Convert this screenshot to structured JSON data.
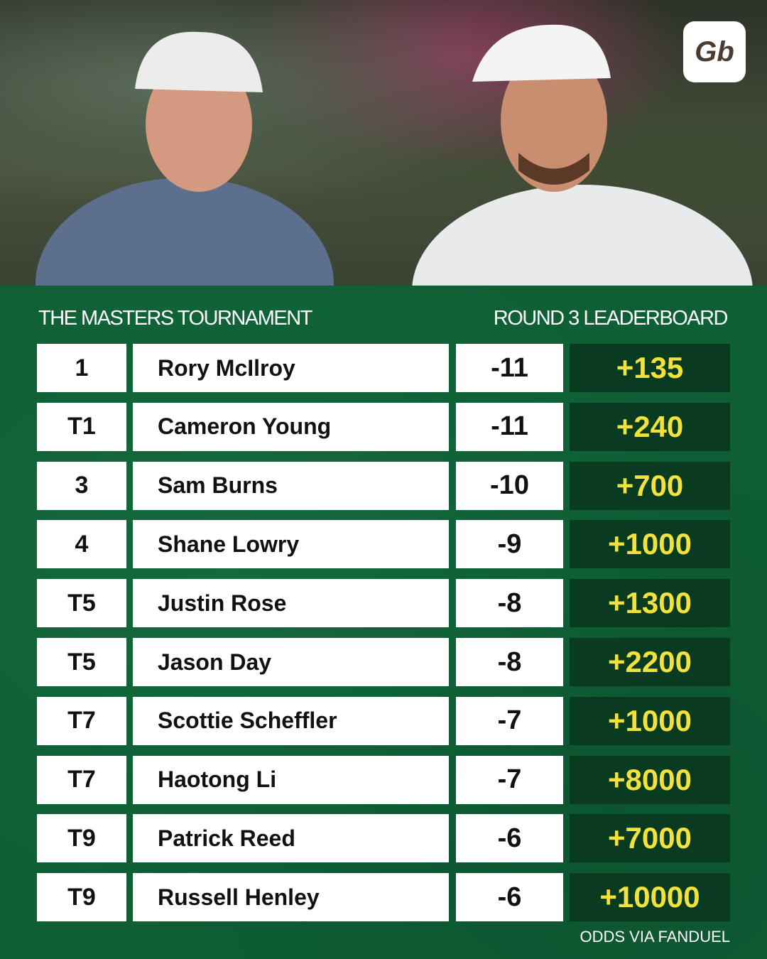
{
  "brand": {
    "logo_text": "Gb"
  },
  "header": {
    "left_title": "THE MASTERS TOURNAMENT",
    "right_title": "ROUND 3 LEADERBOARD"
  },
  "leaderboard": [
    {
      "pos": "1",
      "name": "Rory McIlroy",
      "score": "-11",
      "odds": "+135"
    },
    {
      "pos": "T1",
      "name": "Cameron Young",
      "score": "-11",
      "odds": "+240"
    },
    {
      "pos": "3",
      "name": "Sam Burns",
      "score": "-10",
      "odds": "+700"
    },
    {
      "pos": "4",
      "name": "Shane Lowry",
      "score": "-9",
      "odds": "+1000"
    },
    {
      "pos": "T5",
      "name": "Justin Rose",
      "score": "-8",
      "odds": "+1300"
    },
    {
      "pos": "T5",
      "name": "Jason Day",
      "score": "-8",
      "odds": "+2200"
    },
    {
      "pos": "T7",
      "name": "Scottie Scheffler",
      "score": "-7",
      "odds": "+1000"
    },
    {
      "pos": "T7",
      "name": "Haotong Li",
      "score": "-7",
      "odds": "+8000"
    },
    {
      "pos": "T9",
      "name": "Patrick Reed",
      "score": "-6",
      "odds": "+7000"
    },
    {
      "pos": "T9",
      "name": "Russell Henley",
      "score": "-6",
      "odds": "+10000"
    }
  ],
  "footer": {
    "note": "ODDS VIA FANDUEL"
  },
  "colors": {
    "background": "#0f5f35",
    "odds_cell": "#093b20",
    "odds_text": "#f3e23b"
  }
}
